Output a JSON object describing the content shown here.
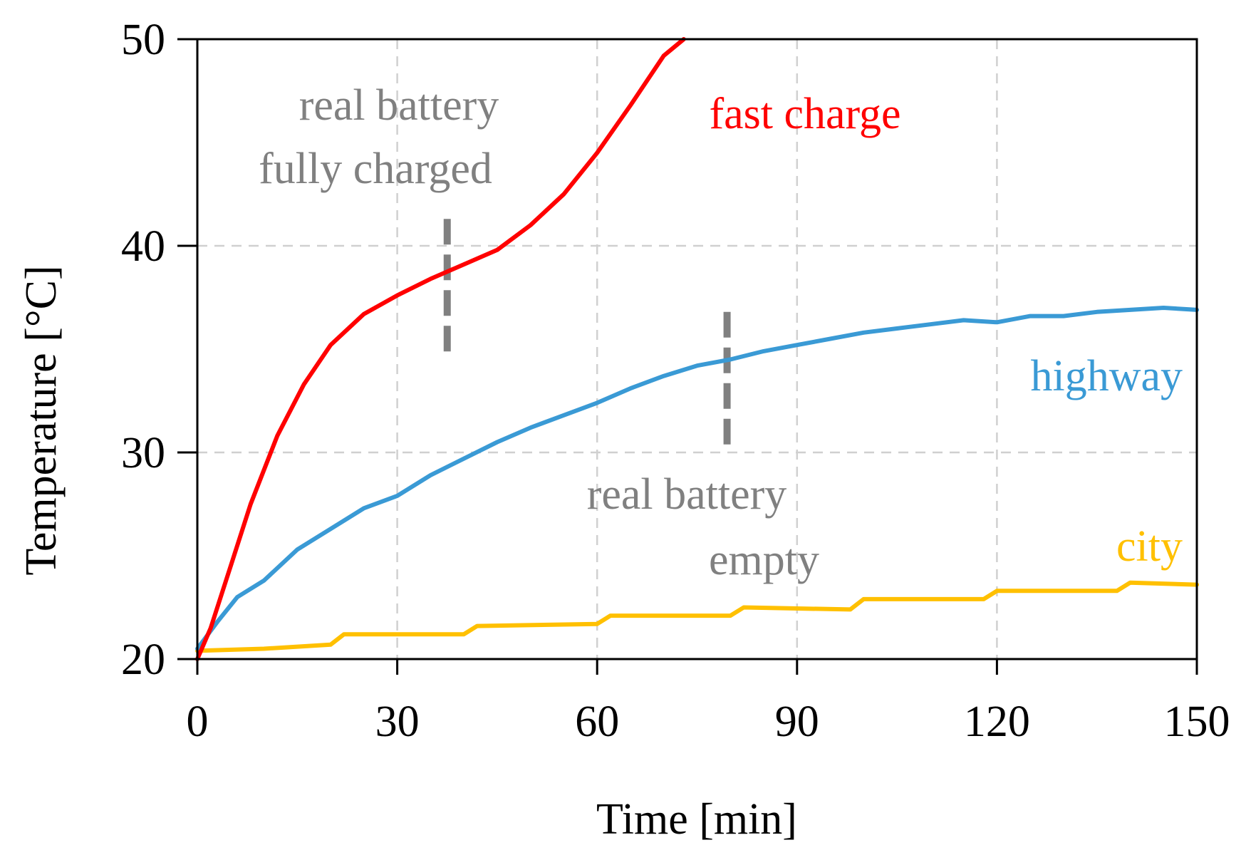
{
  "chart_data": {
    "type": "line",
    "xlabel": "Time [min]",
    "ylabel": "Temperature [°C]",
    "xlim": [
      0,
      150
    ],
    "ylim": [
      20,
      50
    ],
    "xticks": [
      "0",
      "30",
      "60",
      "90",
      "120",
      "150"
    ],
    "yticks": [
      "20",
      "30",
      "40",
      "50"
    ],
    "grid": true,
    "series": [
      {
        "name": "fast charge",
        "color": "#ff0000",
        "x": [
          0,
          2,
          5,
          8,
          12,
          16,
          20,
          25,
          30,
          35,
          40,
          45,
          50,
          55,
          60,
          65,
          70,
          73
        ],
        "y": [
          20,
          21.5,
          24.5,
          27.5,
          30.8,
          33.3,
          35.2,
          36.7,
          37.6,
          38.4,
          39.1,
          39.8,
          41.0,
          42.5,
          44.5,
          46.8,
          49.2,
          50.0
        ]
      },
      {
        "name": "highway",
        "color": "#3a9ad5",
        "x": [
          0,
          3,
          6,
          10,
          15,
          20,
          25,
          30,
          35,
          40,
          45,
          50,
          55,
          60,
          65,
          70,
          75,
          80,
          85,
          90,
          95,
          100,
          105,
          110,
          115,
          120,
          125,
          130,
          135,
          140,
          145,
          150
        ],
        "y": [
          20.5,
          21.8,
          23.0,
          23.8,
          25.3,
          26.3,
          27.3,
          27.9,
          28.9,
          29.7,
          30.5,
          31.2,
          31.8,
          32.4,
          33.1,
          33.7,
          34.2,
          34.5,
          34.9,
          35.2,
          35.5,
          35.8,
          36.0,
          36.2,
          36.4,
          36.3,
          36.6,
          36.6,
          36.8,
          36.9,
          37.0,
          36.9
        ]
      },
      {
        "name": "city",
        "color": "#ffc000",
        "x": [
          0,
          10,
          20,
          22,
          40,
          42,
          60,
          62,
          80,
          82,
          98,
          100,
          118,
          120,
          138,
          140,
          150
        ],
        "y": [
          20.4,
          20.5,
          20.7,
          21.2,
          21.2,
          21.6,
          21.7,
          22.1,
          22.1,
          22.5,
          22.4,
          22.9,
          22.9,
          23.3,
          23.3,
          23.7,
          23.6
        ]
      }
    ],
    "series_labels": {
      "fast_charge": "fast charge",
      "highway": "highway",
      "city": "city"
    },
    "markers": [
      {
        "x": 37.5,
        "y_from": 34.8,
        "y_to": 41.3
      },
      {
        "x": 79.5,
        "y_from": 30.3,
        "y_to": 36.8
      }
    ],
    "annotations": {
      "fully_charged_line1": "real battery",
      "fully_charged_line2": "fully charged",
      "empty_line1": "real battery",
      "empty_line2": "empty"
    },
    "annotation_color": "#808080"
  }
}
